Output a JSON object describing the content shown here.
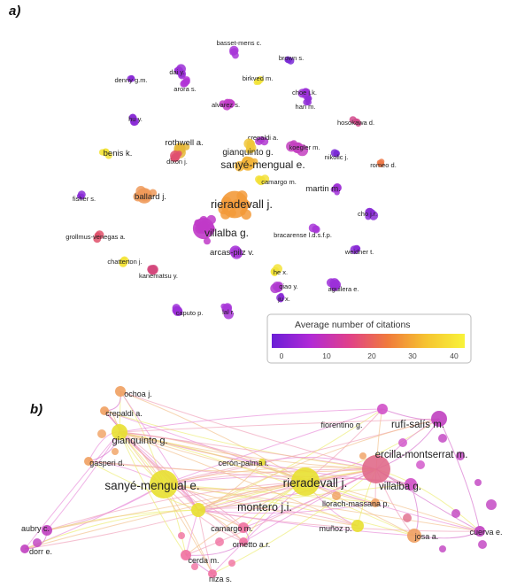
{
  "panels": {
    "a": {
      "label": "a)",
      "legend": {
        "title": "Average number of citations",
        "ticks": [
          "0",
          "10",
          "20",
          "30",
          "40"
        ],
        "gradient": [
          "#6a1fd6",
          "#b12ad6",
          "#e0408a",
          "#f07a3c",
          "#f6c431",
          "#f8f33a"
        ]
      },
      "nodes": [
        {
          "label": "basset-mens c.",
          "color": "#a838d8"
        },
        {
          "label": "brown s.",
          "color": "#7a2ad6"
        },
        {
          "label": "dai y.",
          "color": "#9a2fd6"
        },
        {
          "label": "denny g.m.",
          "color": "#8a2cd6"
        },
        {
          "label": "birkved m.",
          "color": "#f2e33a"
        },
        {
          "label": "arora s.",
          "color": "#b033d6"
        },
        {
          "label": "choe j.k.",
          "color": "#9c30d8"
        },
        {
          "label": "alvarez s.",
          "color": "#c23cc8"
        },
        {
          "label": "han m.",
          "color": "#8f2dd6"
        },
        {
          "label": "hu y.",
          "color": "#8a2cd6"
        },
        {
          "label": "hosokawa d.",
          "color": "#d24a8c"
        },
        {
          "label": "crepaldi a.",
          "color": "#b03ad0"
        },
        {
          "label": "rothwell a.",
          "color": "#e6b83a"
        },
        {
          "label": "koegler m.",
          "color": "#c33fc0"
        },
        {
          "label": "benis k.",
          "color": "#f3e33a"
        },
        {
          "label": "gianquinto g.",
          "color": "#f0c63a"
        },
        {
          "label": "nikolic j.",
          "color": "#7a2ad6"
        },
        {
          "label": "dixon j.",
          "color": "#e05070"
        },
        {
          "label": "sanyé-mengual e.",
          "color": "#f2b43a"
        },
        {
          "label": "romeo d.",
          "color": "#ef7a4a"
        },
        {
          "label": "camargo m.",
          "color": "#f3e03a"
        },
        {
          "label": "fisher s.",
          "color": "#8a2cd6"
        },
        {
          "label": "ballard j.",
          "color": "#ef9a5a"
        },
        {
          "label": "martin m.",
          "color": "#a033d6"
        },
        {
          "label": "rieradevall j.",
          "color": "#f39a3a"
        },
        {
          "label": "cho j.r.",
          "color": "#8a2cd6"
        },
        {
          "label": "grollmus-venegas a.",
          "color": "#e0506a"
        },
        {
          "label": "villalba g.",
          "color": "#c03ac8"
        },
        {
          "label": "bracarense l.d.s.f.p.",
          "color": "#a838d8"
        },
        {
          "label": "weidner t.",
          "color": "#8a2cd6"
        },
        {
          "label": "chatterton j.",
          "color": "#f3e33a"
        },
        {
          "label": "arcas-pilz v.",
          "color": "#a838d8"
        },
        {
          "label": "kanematsu y.",
          "color": "#d4487c"
        },
        {
          "label": "he x.",
          "color": "#f3e33a"
        },
        {
          "label": "aguilera e.",
          "color": "#9c30d8"
        },
        {
          "label": "qiao y.",
          "color": "#b03ad0"
        },
        {
          "label": "ju x.",
          "color": "#8a2cd6"
        },
        {
          "label": "caputo p.",
          "color": "#9c30d8"
        },
        {
          "label": "lal r.",
          "color": "#a838d8"
        }
      ]
    },
    "b": {
      "label": "b)",
      "nodes": [
        {
          "label": "ochoa j.",
          "color": "#f0a060"
        },
        {
          "label": "crepaldi a.",
          "color": "#f0a060"
        },
        {
          "label": "fiorentino g.",
          "color": "#d050c8"
        },
        {
          "label": "rufí-salís m.",
          "color": "#c040c0"
        },
        {
          "label": "gianquinto g.",
          "color": "#e8e030"
        },
        {
          "label": "ercilla-montserrat m.",
          "color": "#e06a8a"
        },
        {
          "label": "gasperi d.",
          "color": "#f0a060"
        },
        {
          "label": "cerón-palma i.",
          "color": "#e8e030"
        },
        {
          "label": "sanyé-mengual e.",
          "color": "#e8e030"
        },
        {
          "label": "rieradevall j.",
          "color": "#e8e030"
        },
        {
          "label": "villalba g.",
          "color": "#d050c8"
        },
        {
          "label": "montero j.i.",
          "color": "#e8e030"
        },
        {
          "label": "llorach-massana p.",
          "color": "#f0a060"
        },
        {
          "label": "muñoz p.",
          "color": "#e8e030"
        },
        {
          "label": "aubry c.",
          "color": "#c040c0"
        },
        {
          "label": "camargo m.",
          "color": "#f070a0"
        },
        {
          "label": "josa a.",
          "color": "#f0a060"
        },
        {
          "label": "cuerva e.",
          "color": "#c040c0"
        },
        {
          "label": "dorr e.",
          "color": "#c040c0"
        },
        {
          "label": "ometto a.r.",
          "color": "#f070a0"
        },
        {
          "label": "cerda m.",
          "color": "#f070a0"
        },
        {
          "label": "niza s.",
          "color": "#f070a0"
        }
      ]
    }
  }
}
